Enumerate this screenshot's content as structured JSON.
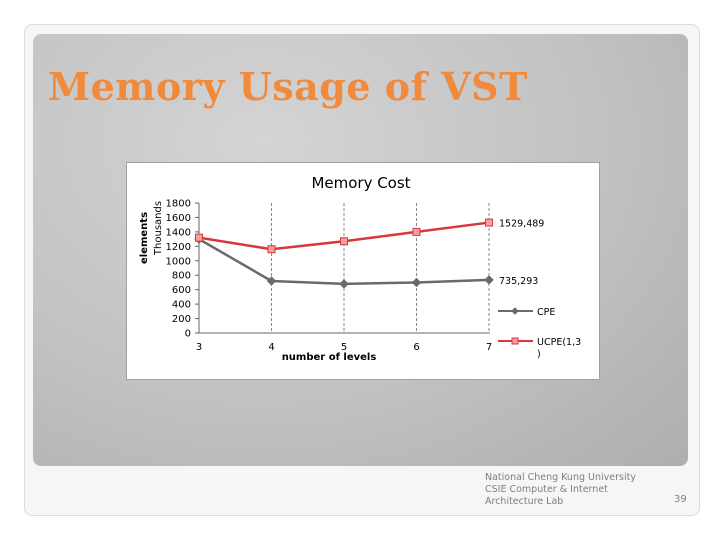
{
  "slide": {
    "title": "Memory Usage of VST",
    "footer_lines": [
      "National Cheng Kung University",
      "CSIE Computer & Internet",
      "Architecture Lab"
    ],
    "page_number": "39"
  },
  "colors": {
    "title": "#f08a3c",
    "cpe": "#6a6a6a",
    "ucpe": "#d8383c",
    "ucpe_fill": "#f2a0a0",
    "grid": "#888888"
  },
  "chart_data": {
    "type": "line",
    "title": "Memory Cost",
    "xlabel": "number of levels",
    "ylabel": "elements",
    "yunit": "Thousands",
    "categories": [
      "3",
      "4",
      "5",
      "6",
      "7"
    ],
    "ylim": [
      0,
      1800
    ],
    "yticks": [
      "0",
      "200",
      "400",
      "600",
      "800",
      "1000",
      "1200",
      "1400",
      "1600",
      "1800"
    ],
    "grid": "vertical",
    "legend_position": "right",
    "series": [
      {
        "name": "CPE",
        "legend_label": [
          "CPE"
        ],
        "values": [
          1300,
          720,
          680,
          700,
          735
        ],
        "marker": "diamond",
        "end_label": "735,293"
      },
      {
        "name": "UCPE(1,3)",
        "legend_label": [
          "UCPE(1,3",
          ")"
        ],
        "values": [
          1320,
          1160,
          1270,
          1400,
          1529
        ],
        "marker": "square",
        "end_label": "1529,489"
      }
    ]
  }
}
